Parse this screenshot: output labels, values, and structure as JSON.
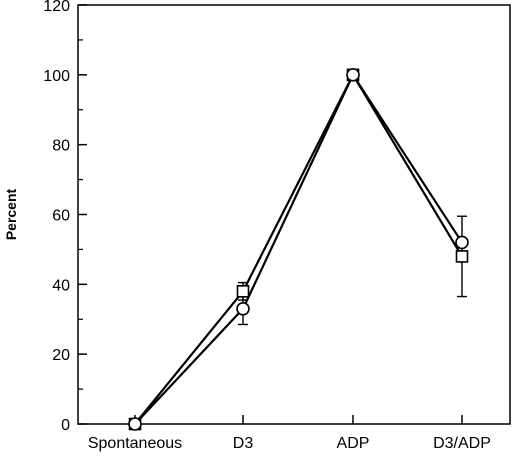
{
  "chart_data": {
    "type": "line",
    "title": "",
    "xlabel": "",
    "ylabel": "Percent",
    "categories": [
      "Spontaneous",
      "D3",
      "ADP",
      "D3/ADP"
    ],
    "ylim": [
      0,
      120
    ],
    "y_ticks": [
      0,
      20,
      40,
      60,
      80,
      100,
      120
    ],
    "grid": false,
    "series": [
      {
        "marker": "circle",
        "values": [
          0,
          33,
          100,
          52
        ],
        "errors": [
          0,
          4.5,
          0,
          0
        ]
      },
      {
        "marker": "square",
        "values": [
          0,
          38,
          100,
          48
        ],
        "errors": [
          0,
          2.5,
          0,
          11.5
        ]
      }
    ]
  }
}
